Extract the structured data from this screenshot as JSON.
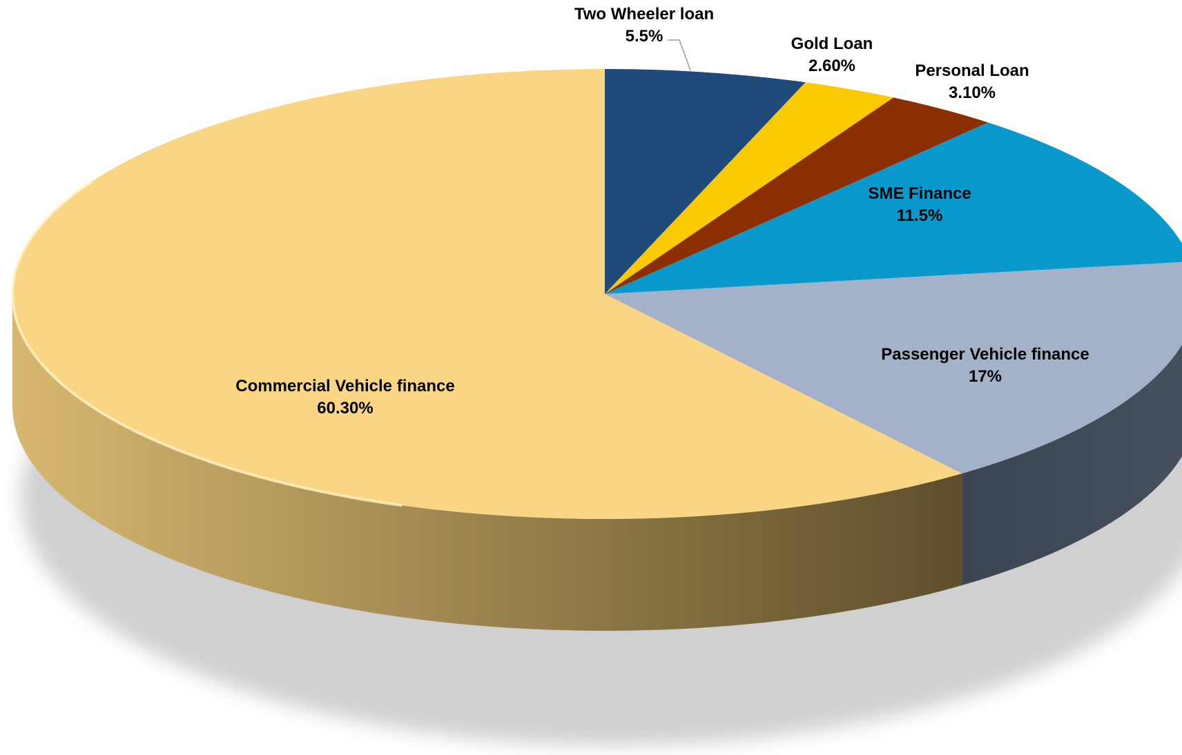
{
  "chart_data": {
    "type": "pie",
    "title": "",
    "categories": [
      "Two Wheeler loan",
      "Gold Loan",
      "Personal Loan",
      "SME Finance",
      "Passenger Vehicle finance",
      "Commercial Vehicle finance"
    ],
    "values": [
      5.5,
      2.6,
      3.1,
      11.5,
      17,
      60.3
    ],
    "value_labels": [
      "5.5%",
      "2.60%",
      "3.10%",
      "11.5%",
      "17%",
      "60.30%"
    ],
    "colors": [
      "#1f4a7a",
      "#fbc900",
      "#8c2f00",
      "#0a99cd",
      "#a3b2c8",
      "#f9d584"
    ],
    "start_angle_deg": 0,
    "direction": "clockwise",
    "style": "3d",
    "legend": "none"
  }
}
